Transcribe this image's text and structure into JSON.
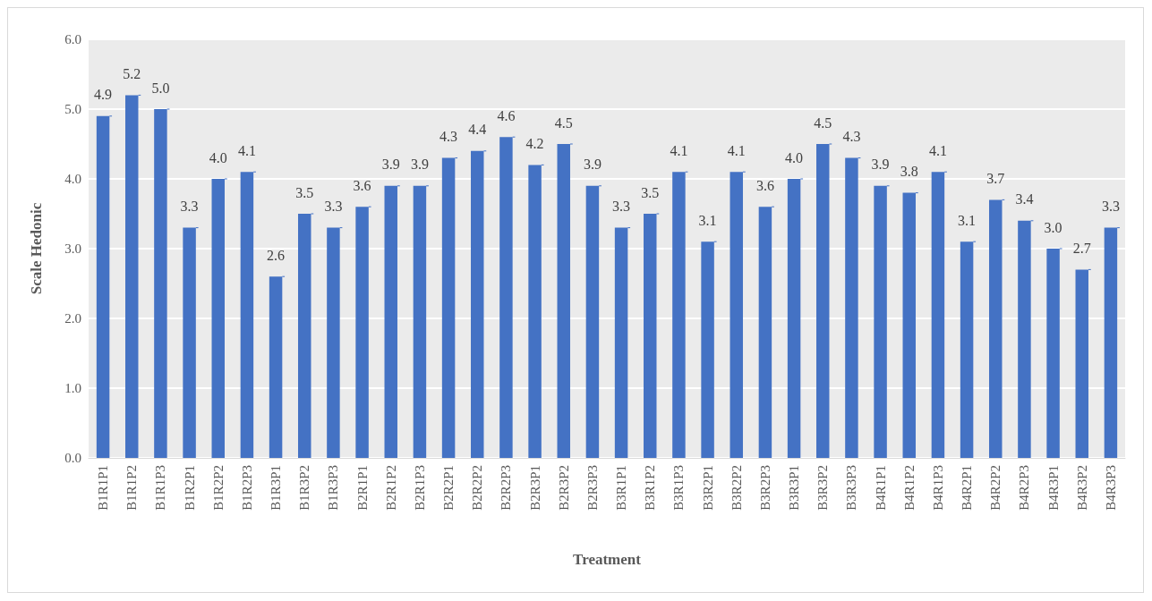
{
  "chart_data": {
    "type": "bar",
    "xlabel": "Treatment",
    "ylabel": "Scale Hedonic",
    "categories": [
      "B1R1P1",
      "B1R1P2",
      "B1R1P3",
      "B1R2P1",
      "B1R2P2",
      "B1R2P3",
      "B1R3P1",
      "B1R3P2",
      "B1R3P3",
      "B2R1P1",
      "B2R1P2",
      "B2R1P3",
      "B2R2P1",
      "B2R2P2",
      "B2R2P3",
      "B2R3P1",
      "B2R3P2",
      "B2R3P3",
      "B3R1P1",
      "B3R1P2",
      "B3R1P3",
      "B3R2P1",
      "B3R2P2",
      "B3R2P3",
      "B3R3P1",
      "B3R3P2",
      "B3R3P3",
      "B4R1P1",
      "B4R1P2",
      "B4R1P3",
      "B4R2P1",
      "B4R2P2",
      "B4R2P3",
      "B4R3P1",
      "B4R3P2",
      "B4R3P3"
    ],
    "values": [
      4.9,
      5.2,
      5.0,
      3.3,
      4.0,
      4.1,
      2.6,
      3.5,
      3.3,
      3.6,
      3.9,
      3.9,
      4.3,
      4.4,
      4.6,
      4.2,
      4.5,
      3.9,
      3.3,
      3.5,
      4.1,
      3.1,
      4.1,
      3.6,
      4.0,
      4.5,
      4.3,
      3.9,
      3.8,
      4.1,
      3.1,
      3.7,
      3.4,
      3.0,
      2.7,
      3.3
    ],
    "value_labels": [
      "4.9",
      "5.2",
      "5.0",
      "3.3",
      "4.0",
      "4.1",
      "2.6",
      "3.5",
      "3.3",
      "3.6",
      "3.9",
      "3.9",
      "4.3",
      "4.4",
      "4.6",
      "4.2",
      "4.5",
      "3.9",
      "3.3",
      "3.5",
      "4.1",
      "3.1",
      "4.1",
      "3.6",
      "4.0",
      "4.5",
      "4.3",
      "3.9",
      "3.8",
      "4.1",
      "3.1",
      "3.7",
      "3.4",
      "3.0",
      "2.7",
      "3.3"
    ],
    "color": "#4472c4",
    "ylim": [
      0,
      6
    ],
    "yticks": [
      {
        "value": 0,
        "label": "0.0"
      },
      {
        "value": 1,
        "label": "1.0"
      },
      {
        "value": 2,
        "label": "2.0"
      },
      {
        "value": 3,
        "label": "3.0"
      },
      {
        "value": 4,
        "label": "4.0"
      },
      {
        "value": 5,
        "label": "5.0"
      },
      {
        "value": 6,
        "label": "6.0"
      }
    ],
    "grid": "y"
  }
}
